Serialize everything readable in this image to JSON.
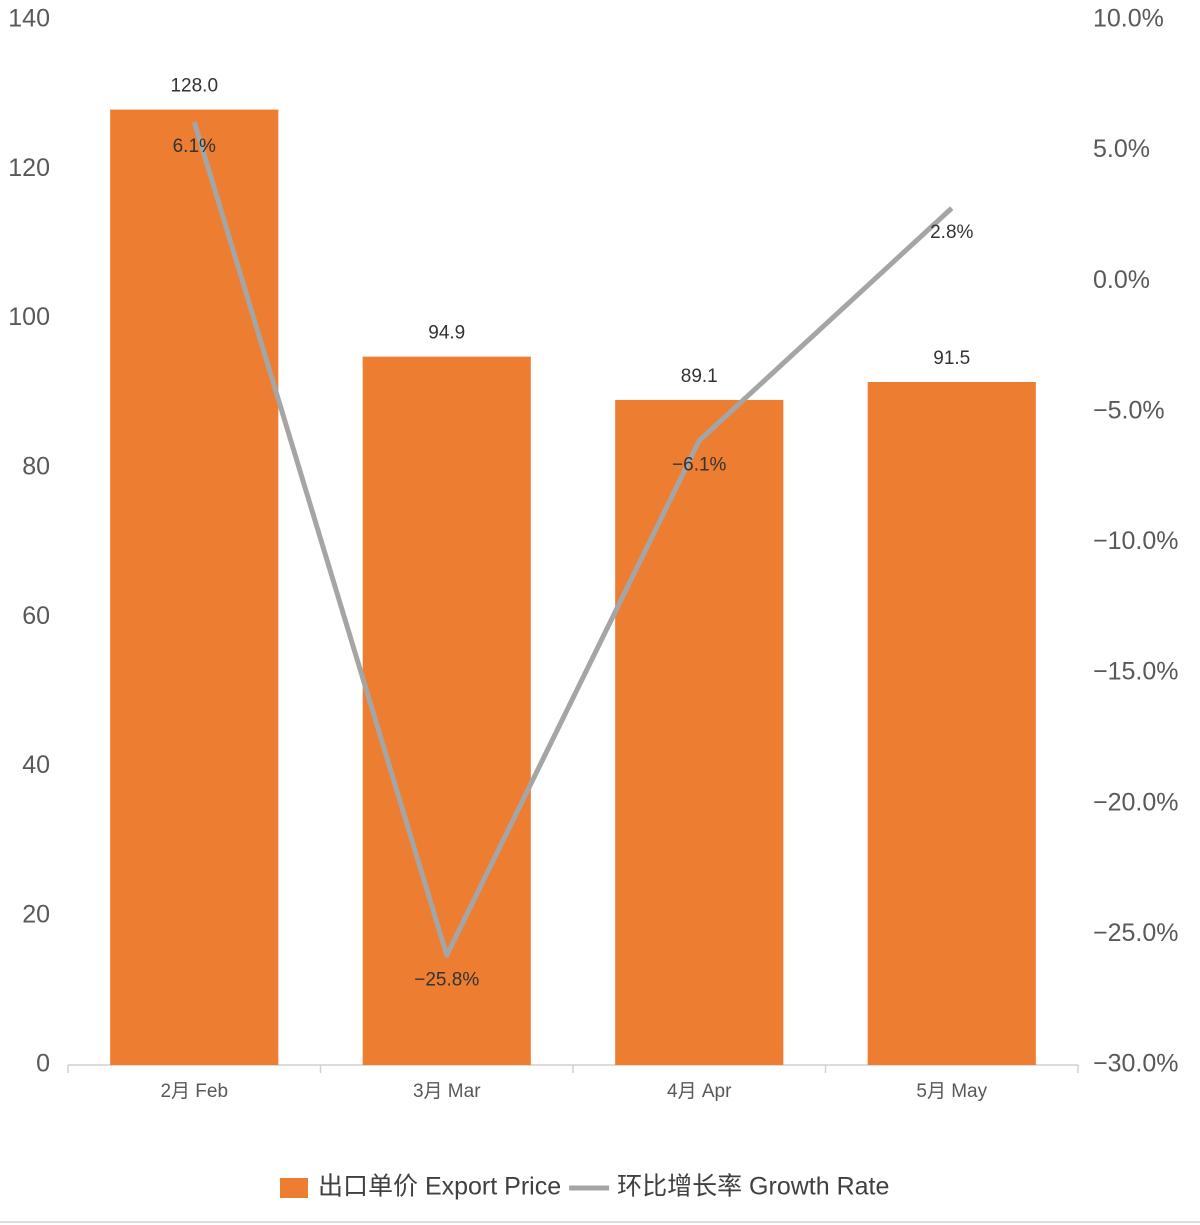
{
  "chart_data": {
    "type": "bar_line",
    "categories": [
      "2月 Feb",
      "3月 Mar",
      "4月 Apr",
      "5月 May"
    ],
    "series": [
      {
        "name": "出口单价 Export Price",
        "type": "bar",
        "color": "#ED7D31",
        "values": [
          128,
          94.9,
          89.1,
          91.5
        ],
        "value_labels": [
          "128.0",
          "94.9",
          "89.1",
          "91.5"
        ]
      },
      {
        "name": "环比增长率 Growth Rate",
        "type": "line",
        "axis": "y2",
        "color": "#A5A5A5",
        "values": [
          6.1,
          -25.8,
          -6.1,
          2.8
        ],
        "value_labels": [
          "6.1%",
          "−25.8%",
          "−6.1%",
          "2.8%"
        ]
      }
    ],
    "ylim": [
      0,
      140
    ],
    "yticks": [
      0,
      20,
      40,
      60,
      80,
      100,
      120,
      140
    ],
    "y2lim": [
      -30,
      10
    ],
    "y2ticks": [
      {
        "value": -30,
        "label": "−30.0%"
      },
      {
        "value": -25,
        "label": "−25.0%"
      },
      {
        "value": -20,
        "label": "−20.0%"
      },
      {
        "value": -15,
        "label": "−15.0%"
      },
      {
        "value": -10,
        "label": "−10.0%"
      },
      {
        "value": -5,
        "label": "−5.0%"
      },
      {
        "value": 0,
        "label": "0.0%"
      },
      {
        "value": 5,
        "label": "5.0%"
      },
      {
        "value": 10,
        "label": "10.0%"
      }
    ],
    "legend": "bottom"
  }
}
